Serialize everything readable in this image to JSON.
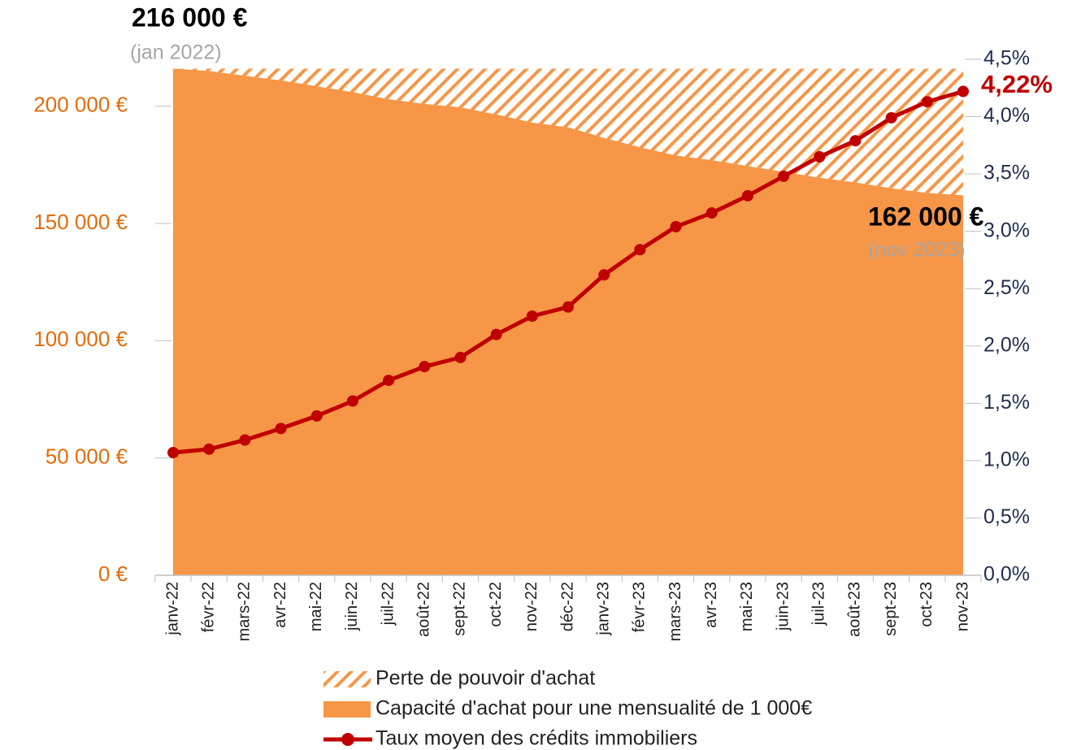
{
  "chart_data": {
    "type": "area-line",
    "categories": [
      "janv-22",
      "févr-22",
      "mars-22",
      "avr-22",
      "mai-22",
      "juin-22",
      "juil-22",
      "août-22",
      "sept-22",
      "oct-22",
      "nov-22",
      "déc-22",
      "janv-23",
      "févr-23",
      "mars-23",
      "avr-23",
      "mai-23",
      "juin-23",
      "juil-23",
      "août-23",
      "sept-23",
      "oct-23",
      "nov-23"
    ],
    "series": [
      {
        "name": "Capacité d'achat pour une mensualité de 1 000€",
        "color": "#f79646",
        "kind": "area",
        "values": [
          216000,
          215000,
          213000,
          211000,
          208500,
          206000,
          203000,
          201000,
          199500,
          196500,
          193000,
          191000,
          186500,
          182500,
          179000,
          177000,
          174500,
          172000,
          169500,
          167500,
          165000,
          163000,
          162000
        ]
      },
      {
        "name": "Perte de pouvoir d'achat",
        "color": "#f79646",
        "kind": "hatch",
        "values": [
          0,
          1000,
          3000,
          5000,
          7500,
          10000,
          13000,
          15000,
          16500,
          19500,
          23000,
          25000,
          29500,
          33500,
          37000,
          39000,
          41500,
          44000,
          46500,
          48500,
          51000,
          53000,
          54000
        ]
      },
      {
        "name": "Taux moyen des crédits immobiliers",
        "color": "#c00000",
        "kind": "line",
        "axis": "y2",
        "values": [
          1.07,
          1.1,
          1.18,
          1.28,
          1.39,
          1.52,
          1.7,
          1.82,
          1.9,
          2.1,
          2.26,
          2.34,
          2.62,
          2.84,
          3.04,
          3.16,
          3.31,
          3.48,
          3.65,
          3.79,
          3.99,
          4.13,
          4.22
        ]
      }
    ],
    "ylim": [
      0,
      220000
    ],
    "yticks": [
      {
        "value": 0,
        "label": "0 €"
      },
      {
        "value": 50000,
        "label": "50 000 €"
      },
      {
        "value": 100000,
        "label": "100 000 €"
      },
      {
        "value": 150000,
        "label": "150 000 €"
      },
      {
        "value": 200000,
        "label": "200 000 €"
      }
    ],
    "y2lim": [
      0,
      4.5
    ],
    "y2ticks": [
      {
        "value": 0,
        "label": "0,0%"
      },
      {
        "value": 0.5,
        "label": "0,5%"
      },
      {
        "value": 1,
        "label": "1,0%"
      },
      {
        "value": 1.5,
        "label": "1,5%"
      },
      {
        "value": 2,
        "label": "2,0%"
      },
      {
        "value": 2.5,
        "label": "2,5%"
      },
      {
        "value": 3,
        "label": "3,0%"
      },
      {
        "value": 3.5,
        "label": "3,5%"
      },
      {
        "value": 4,
        "label": "4,0%"
      },
      {
        "value": 4.5,
        "label": "4,5%"
      }
    ],
    "annotations": [
      "216 000 €",
      "(jan 2022)",
      "162 000 €",
      "(nov 2023)",
      "4,22%"
    ]
  }
}
